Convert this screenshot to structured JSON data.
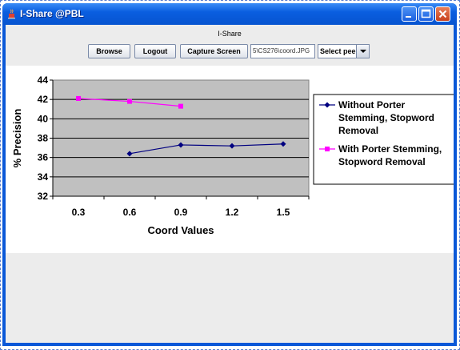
{
  "window": {
    "title": "I-Share @PBL"
  },
  "toolbar": {
    "heading": "I-Share",
    "browse_label": "Browse",
    "logout_label": "Logout",
    "capture_label": "Capture Screen",
    "path_value": "5\\CS276\\coord.JPG",
    "peer_select": "Select peer"
  },
  "icons": {
    "app": "java-cup-icon",
    "minimize": "minimize-icon",
    "maximize": "maximize-icon",
    "close": "close-icon"
  },
  "chart_data": {
    "type": "line",
    "title": "",
    "xlabel": "Coord Values",
    "ylabel": "% Precision",
    "categories": [
      "0.3",
      "0.6",
      "0.9",
      "1.2",
      "1.5"
    ],
    "ylim": [
      32,
      44
    ],
    "yticks": [
      32,
      34,
      36,
      38,
      40,
      42,
      44
    ],
    "grid": true,
    "legend_position": "right",
    "series": [
      {
        "name": "Without Porter Stemming, Stopword Removal",
        "color": "#000080",
        "marker": "diamond",
        "values": [
          null,
          36.4,
          37.3,
          37.2,
          37.4
        ]
      },
      {
        "name": "With Porter Stemming, Stopword Removal",
        "color": "#ff00ff",
        "marker": "square",
        "values": [
          42.1,
          41.8,
          41.3,
          null,
          null
        ]
      }
    ],
    "legend_lines": [
      [
        "Without Porter",
        "Stemming, Stopword",
        "Removal"
      ],
      [
        "With Porter Stemming,",
        "Stopword Removal"
      ]
    ]
  }
}
